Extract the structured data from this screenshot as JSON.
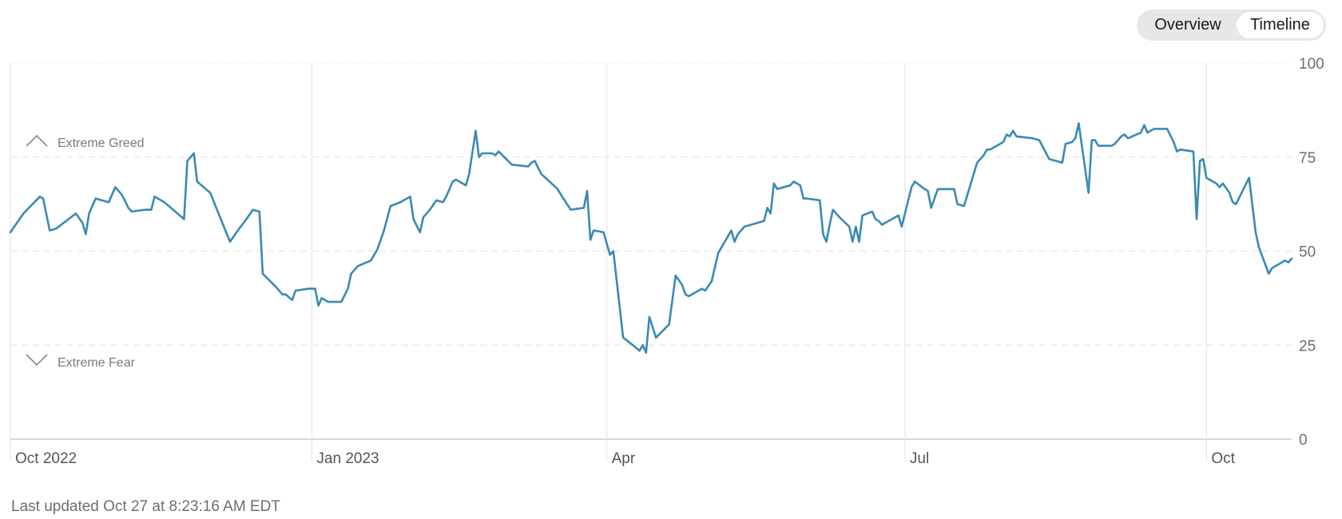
{
  "toggle": {
    "overview_label": "Overview",
    "timeline_label": "Timeline",
    "selected": "Timeline"
  },
  "footer": {
    "last_updated": "Last updated Oct 27 at 8:23:16 AM EDT"
  },
  "colors": {
    "line": "#3a8ab3",
    "grid": "#e3e3e3",
    "axis": "#cccccc"
  },
  "chart_data": {
    "type": "line",
    "title": "",
    "xlabel": "",
    "ylabel": "",
    "ylim": [
      0,
      100
    ],
    "y_ticks": [
      0,
      25,
      50,
      75,
      100
    ],
    "dashed_gridlines": [
      25,
      50,
      75
    ],
    "x_ticks": [
      {
        "date": "2022-10-01",
        "label": "Oct 2022"
      },
      {
        "date": "2023-01-01",
        "label": "Jan 2023"
      },
      {
        "date": "2023-04-01",
        "label": "Apr"
      },
      {
        "date": "2023-07-01",
        "label": "Jul"
      },
      {
        "date": "2023-10-01",
        "label": "Oct"
      }
    ],
    "xlim": [
      "2022-10-01",
      "2023-10-27"
    ],
    "annotations": [
      {
        "text": "Extreme Greed",
        "direction": "up",
        "level": 75
      },
      {
        "text": "Extreme Fear",
        "direction": "down",
        "level": 25
      }
    ],
    "series": [
      {
        "points": [
          [
            "2022-10-01",
            55
          ],
          [
            "2022-10-05",
            60
          ],
          [
            "2022-10-10",
            64.5
          ],
          [
            "2022-10-11",
            64
          ],
          [
            "2022-10-13",
            55.5
          ],
          [
            "2022-10-15",
            56
          ],
          [
            "2022-10-21",
            60
          ],
          [
            "2022-10-23",
            57.5
          ],
          [
            "2022-10-24",
            54.5
          ],
          [
            "2022-10-25",
            60
          ],
          [
            "2022-10-27",
            64
          ],
          [
            "2022-10-31",
            63
          ],
          [
            "2022-11-02",
            67
          ],
          [
            "2022-11-04",
            65
          ],
          [
            "2022-11-06",
            61.5
          ],
          [
            "2022-11-07",
            60.5
          ],
          [
            "2022-11-11",
            61
          ],
          [
            "2022-11-13",
            61
          ],
          [
            "2022-11-14",
            64.5
          ],
          [
            "2022-11-17",
            63
          ],
          [
            "2022-11-23",
            58.5
          ],
          [
            "2022-11-24",
            74
          ],
          [
            "2022-11-26",
            76
          ],
          [
            "2022-11-27",
            68.5
          ],
          [
            "2022-12-01",
            65.5
          ],
          [
            "2022-12-04",
            59
          ],
          [
            "2022-12-07",
            52.5
          ],
          [
            "2022-12-09",
            55
          ],
          [
            "2022-12-12",
            58.5
          ],
          [
            "2022-12-14",
            61
          ],
          [
            "2022-12-16",
            60.5
          ],
          [
            "2022-12-17",
            44
          ],
          [
            "2022-12-21",
            40.5
          ],
          [
            "2022-12-23",
            38.5
          ],
          [
            "2022-12-24",
            38.5
          ],
          [
            "2022-12-26",
            37
          ],
          [
            "2022-12-27",
            39.5
          ],
          [
            "2022-12-31",
            40
          ],
          [
            "2023-01-02",
            40
          ],
          [
            "2023-01-03",
            35.5
          ],
          [
            "2023-01-04",
            37.5
          ],
          [
            "2023-01-06",
            36.5
          ],
          [
            "2023-01-10",
            36.5
          ],
          [
            "2023-01-12",
            40
          ],
          [
            "2023-01-13",
            44
          ],
          [
            "2023-01-15",
            46
          ],
          [
            "2023-01-19",
            47.5
          ],
          [
            "2023-01-21",
            50.5
          ],
          [
            "2023-01-23",
            55.5
          ],
          [
            "2023-01-25",
            62
          ],
          [
            "2023-01-28",
            63
          ],
          [
            "2023-01-31",
            64.5
          ],
          [
            "2023-02-01",
            58.5
          ],
          [
            "2023-02-03",
            55
          ],
          [
            "2023-02-04",
            59
          ],
          [
            "2023-02-06",
            61
          ],
          [
            "2023-02-08",
            63.5
          ],
          [
            "2023-02-10",
            63
          ],
          [
            "2023-02-11",
            64.5
          ],
          [
            "2023-02-13",
            68.5
          ],
          [
            "2023-02-14",
            69
          ],
          [
            "2023-02-17",
            67.5
          ],
          [
            "2023-02-18",
            70.5
          ],
          [
            "2023-02-20",
            82
          ],
          [
            "2023-02-21",
            75
          ],
          [
            "2023-02-22",
            76
          ],
          [
            "2023-02-25",
            76
          ],
          [
            "2023-02-26",
            75.5
          ],
          [
            "2023-02-27",
            76.5
          ],
          [
            "2023-03-03",
            73
          ],
          [
            "2023-03-08",
            72.5
          ],
          [
            "2023-03-09",
            73.5
          ],
          [
            "2023-03-10",
            74
          ],
          [
            "2023-03-12",
            70.5
          ],
          [
            "2023-03-17",
            66.5
          ],
          [
            "2023-03-18",
            65
          ],
          [
            "2023-03-21",
            61
          ],
          [
            "2023-03-25",
            61.5
          ],
          [
            "2023-03-26",
            66
          ],
          [
            "2023-03-27",
            53
          ],
          [
            "2023-03-28",
            55.5
          ],
          [
            "2023-03-31",
            55
          ],
          [
            "2023-04-02",
            49
          ],
          [
            "2023-04-03",
            50
          ],
          [
            "2023-04-06",
            27
          ],
          [
            "2023-04-09",
            25
          ],
          [
            "2023-04-11",
            23.5
          ],
          [
            "2023-04-12",
            25
          ],
          [
            "2023-04-13",
            23
          ],
          [
            "2023-04-14",
            32.5
          ],
          [
            "2023-04-16",
            27
          ],
          [
            "2023-04-20",
            30.5
          ],
          [
            "2023-04-22",
            43.5
          ],
          [
            "2023-04-24",
            41
          ],
          [
            "2023-04-25",
            38.5
          ],
          [
            "2023-04-26",
            38
          ],
          [
            "2023-04-30",
            40
          ],
          [
            "2023-05-01",
            39.5
          ],
          [
            "2023-05-03",
            42
          ],
          [
            "2023-05-05",
            49.5
          ],
          [
            "2023-05-07",
            52.5
          ],
          [
            "2023-05-09",
            55.5
          ],
          [
            "2023-05-10",
            52.5
          ],
          [
            "2023-05-11",
            54.5
          ],
          [
            "2023-05-13",
            56.5
          ],
          [
            "2023-05-19",
            58
          ],
          [
            "2023-05-20",
            61.5
          ],
          [
            "2023-05-21",
            60
          ],
          [
            "2023-05-22",
            68
          ],
          [
            "2023-05-23",
            66.5
          ],
          [
            "2023-05-27",
            67.5
          ],
          [
            "2023-05-28",
            68.5
          ],
          [
            "2023-05-30",
            67.5
          ],
          [
            "2023-05-31",
            64
          ],
          [
            "2023-06-01",
            64
          ],
          [
            "2023-06-05",
            63.5
          ],
          [
            "2023-06-06",
            54.5
          ],
          [
            "2023-06-07",
            52.5
          ],
          [
            "2023-06-08",
            57
          ],
          [
            "2023-06-09",
            61
          ],
          [
            "2023-06-11",
            59
          ],
          [
            "2023-06-14",
            56.5
          ],
          [
            "2023-06-15",
            52.5
          ],
          [
            "2023-06-16",
            56.5
          ],
          [
            "2023-06-17",
            52.5
          ],
          [
            "2023-06-18",
            59.5
          ],
          [
            "2023-06-21",
            60.5
          ],
          [
            "2023-06-22",
            58.5
          ],
          [
            "2023-06-23",
            58
          ],
          [
            "2023-06-24",
            57
          ],
          [
            "2023-06-26",
            58
          ],
          [
            "2023-06-28",
            59
          ],
          [
            "2023-06-29",
            59.5
          ],
          [
            "2023-06-30",
            56.5
          ],
          [
            "2023-07-03",
            67
          ],
          [
            "2023-07-04",
            68.5
          ],
          [
            "2023-07-07",
            66.5
          ],
          [
            "2023-07-08",
            66
          ],
          [
            "2023-07-09",
            61.5
          ],
          [
            "2023-07-11",
            66.5
          ],
          [
            "2023-07-14",
            66.5
          ],
          [
            "2023-07-16",
            66.5
          ],
          [
            "2023-07-17",
            62.5
          ],
          [
            "2023-07-19",
            62
          ],
          [
            "2023-07-23",
            73.5
          ],
          [
            "2023-07-25",
            75.5
          ],
          [
            "2023-07-26",
            77
          ],
          [
            "2023-07-27",
            77
          ],
          [
            "2023-07-30",
            78.5
          ],
          [
            "2023-07-31",
            79
          ],
          [
            "2023-08-01",
            81
          ],
          [
            "2023-08-02",
            80.5
          ],
          [
            "2023-08-03",
            82
          ],
          [
            "2023-08-04",
            80.5
          ],
          [
            "2023-08-09",
            80
          ],
          [
            "2023-08-11",
            79.5
          ],
          [
            "2023-08-14",
            74.5
          ],
          [
            "2023-08-18",
            73.5
          ],
          [
            "2023-08-19",
            78.5
          ],
          [
            "2023-08-21",
            79
          ],
          [
            "2023-08-22",
            80
          ],
          [
            "2023-08-23",
            84
          ],
          [
            "2023-08-26",
            65.5
          ],
          [
            "2023-08-27",
            79.5
          ],
          [
            "2023-08-28",
            79.5
          ],
          [
            "2023-08-29",
            78
          ],
          [
            "2023-09-02",
            78
          ],
          [
            "2023-09-03",
            78.5
          ],
          [
            "2023-09-05",
            80.5
          ],
          [
            "2023-09-06",
            81
          ],
          [
            "2023-09-07",
            80
          ],
          [
            "2023-09-11",
            81.5
          ],
          [
            "2023-09-12",
            83.5
          ],
          [
            "2023-09-13",
            81.5
          ],
          [
            "2023-09-14",
            82
          ],
          [
            "2023-09-15",
            82.5
          ],
          [
            "2023-09-19",
            82.5
          ],
          [
            "2023-09-21",
            79
          ],
          [
            "2023-09-22",
            76.5
          ],
          [
            "2023-09-23",
            77
          ],
          [
            "2023-09-27",
            76.5
          ],
          [
            "2023-09-28",
            58.5
          ],
          [
            "2023-09-29",
            74
          ],
          [
            "2023-09-30",
            74.5
          ],
          [
            "2023-10-01",
            69.5
          ],
          [
            "2023-10-04",
            68
          ],
          [
            "2023-10-05",
            67
          ],
          [
            "2023-10-06",
            68
          ],
          [
            "2023-10-08",
            65.5
          ],
          [
            "2023-10-09",
            63
          ],
          [
            "2023-10-10",
            62.5
          ],
          [
            "2023-10-14",
            69.5
          ],
          [
            "2023-10-16",
            55
          ],
          [
            "2023-10-17",
            51
          ],
          [
            "2023-10-20",
            44
          ],
          [
            "2023-10-21",
            45.5
          ],
          [
            "2023-10-23",
            46.5
          ],
          [
            "2023-10-25",
            47.5
          ],
          [
            "2023-10-26",
            47
          ],
          [
            "2023-10-27",
            48
          ]
        ]
      }
    ]
  }
}
